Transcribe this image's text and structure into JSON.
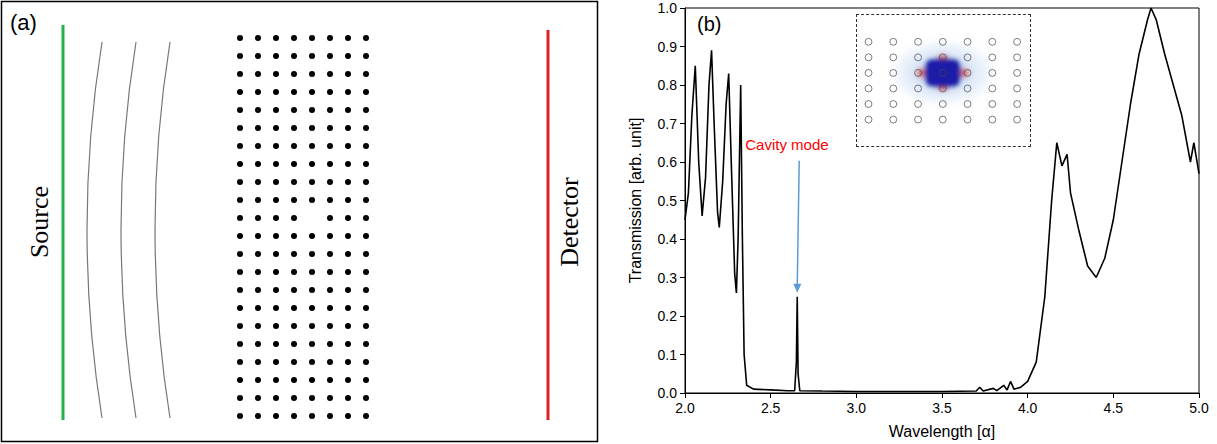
{
  "panel_a": {
    "label": "(a)",
    "source": "Source",
    "detector": "Detector"
  },
  "chart_data": {
    "type": "line",
    "panel_label": "(b)",
    "x_label": "Wavelength [α]",
    "y_label": "Transmission [arb. unit]",
    "color": "#000000",
    "x": [
      2.0,
      2.02,
      2.04,
      2.06,
      2.08,
      2.1,
      2.12,
      2.14,
      2.155,
      2.17,
      2.19,
      2.2,
      2.22,
      2.24,
      2.255,
      2.27,
      2.29,
      2.3,
      2.31,
      2.325,
      2.335,
      2.345,
      2.36,
      2.4,
      2.5,
      2.6,
      2.64,
      2.65,
      2.655,
      2.66,
      2.67,
      2.8,
      3.0,
      3.2,
      3.5,
      3.7,
      3.72,
      3.74,
      3.8,
      3.82,
      3.86,
      3.88,
      3.9,
      3.92,
      3.96,
      4.0,
      4.05,
      4.1,
      4.14,
      4.17,
      4.2,
      4.23,
      4.25,
      4.3,
      4.35,
      4.4,
      4.45,
      4.5,
      4.55,
      4.6,
      4.65,
      4.7,
      4.72,
      4.75,
      4.8,
      4.85,
      4.9,
      4.95,
      4.97,
      5.0
    ],
    "values": [
      0.45,
      0.52,
      0.72,
      0.85,
      0.6,
      0.46,
      0.56,
      0.8,
      0.89,
      0.7,
      0.47,
      0.43,
      0.55,
      0.75,
      0.83,
      0.6,
      0.31,
      0.26,
      0.4,
      0.8,
      0.4,
      0.1,
      0.02,
      0.01,
      0.008,
      0.006,
      0.006,
      0.08,
      0.25,
      0.05,
      0.006,
      0.005,
      0.004,
      0.004,
      0.004,
      0.005,
      0.015,
      0.005,
      0.012,
      0.006,
      0.02,
      0.008,
      0.03,
      0.01,
      0.015,
      0.03,
      0.08,
      0.25,
      0.5,
      0.65,
      0.59,
      0.62,
      0.52,
      0.42,
      0.33,
      0.3,
      0.35,
      0.45,
      0.6,
      0.75,
      0.88,
      0.97,
      1.0,
      0.97,
      0.88,
      0.8,
      0.72,
      0.6,
      0.65,
      0.57
    ],
    "xlim": [
      2,
      5
    ],
    "xticks": [
      {
        "value": 2,
        "label": "2.0"
      },
      {
        "value": 2.5,
        "label": "2.5"
      },
      {
        "value": 3,
        "label": "3.0"
      },
      {
        "value": 3.5,
        "label": "3.5"
      },
      {
        "value": 4,
        "label": "4.0"
      },
      {
        "value": 4.5,
        "label": "4.5"
      },
      {
        "value": 5,
        "label": "5.0"
      }
    ],
    "ylim": [
      0,
      1
    ],
    "yticks": [
      {
        "value": 0,
        "label": "0.0"
      },
      {
        "value": 0.1,
        "label": "0.1"
      },
      {
        "value": 0.2,
        "label": "0.2"
      },
      {
        "value": 0.3,
        "label": "0.3"
      },
      {
        "value": 0.4,
        "label": "0.4"
      },
      {
        "value": 0.5,
        "label": "0.5"
      },
      {
        "value": 0.6,
        "label": "0.6"
      },
      {
        "value": 0.7,
        "label": "0.7"
      },
      {
        "value": 0.8,
        "label": "0.8"
      },
      {
        "value": 0.9,
        "label": "0.9"
      },
      {
        "value": 1,
        "label": "1.0"
      }
    ],
    "grid": false,
    "annotations": [
      {
        "text": "Cavity mode",
        "x": 2.655,
        "y": 0.25,
        "color": "#ff0000"
      }
    ]
  }
}
